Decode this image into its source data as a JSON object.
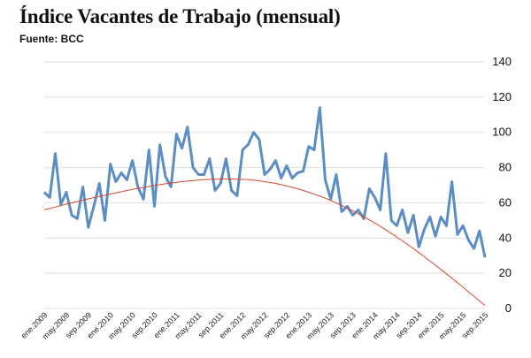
{
  "header": {
    "title": "Índice Vacantes de Trabajo (mensual)",
    "subtitle": "Fuente: BCC"
  },
  "colors": {
    "series": "#5b8ec4",
    "trend": "#d9472f",
    "grid": "#dedede"
  },
  "chart_data": {
    "type": "line",
    "title": "Índice Vacantes de Trabajo (mensual)",
    "subtitle": "Fuente: BCC",
    "ylim": [
      0,
      140
    ],
    "yticks": [
      0,
      20,
      40,
      60,
      80,
      100,
      120,
      140
    ],
    "grid": true,
    "xtick_labels": [
      "ene.2009",
      "may.2009",
      "sep.2009",
      "ene.2010",
      "may.2010",
      "sep.2010",
      "ene.2011",
      "may.2011",
      "sep.2011",
      "ene.2012",
      "may.2012",
      "sep.2012",
      "ene.2013",
      "may.2013",
      "sep.2013",
      "ene.2014",
      "may.2014",
      "sep.2014",
      "ene.2015",
      "may.2015",
      "sep.2015"
    ],
    "series": [
      {
        "values": [
          66,
          63,
          88,
          59,
          66,
          53,
          51,
          69,
          46,
          58,
          71,
          50,
          82,
          72,
          77,
          73,
          84,
          69,
          62,
          90,
          58,
          93,
          75,
          69,
          99,
          91,
          103,
          80,
          76,
          76,
          85,
          67,
          71,
          85,
          67,
          64,
          90,
          93,
          100,
          96,
          76,
          79,
          84,
          74,
          81,
          74,
          77,
          78,
          92,
          90,
          114,
          73,
          62,
          76,
          55,
          58,
          53,
          56,
          51,
          68,
          63,
          56,
          88,
          50,
          47,
          56,
          43,
          53,
          35,
          45,
          52,
          41,
          52,
          47,
          72,
          42,
          47,
          39,
          34,
          44,
          29
        ]
      },
      {
        "name": "",
        "type": "trend",
        "values": [
          56,
          56.8,
          57.6,
          58.4,
          59.2,
          60,
          60.7,
          61.5,
          62.2,
          62.9,
          63.6,
          64.3,
          65,
          65.7,
          66.3,
          67,
          67.6,
          68.2,
          68.7,
          69.3,
          69.8,
          70.3,
          70.8,
          71.2,
          71.6,
          72,
          72.3,
          72.6,
          72.9,
          73.1,
          73.3,
          73.4,
          73.5,
          73.5,
          73.5,
          73.4,
          73.3,
          73.1,
          72.8,
          72.5,
          72,
          71.5,
          71,
          70.3,
          69.6,
          68.8,
          68,
          67,
          66,
          64.9,
          63.8,
          62.6,
          61.3,
          59.9,
          58.5,
          57,
          55.4,
          53.8,
          52.1,
          50.3,
          48.5,
          46.6,
          44.6,
          42.6,
          40.5,
          38.4,
          36.2,
          34,
          31.7,
          29.4,
          27,
          24.6,
          22.2,
          19.7,
          17.2,
          14.7,
          12.1,
          9.5,
          6.9,
          4.3,
          1.7
        ]
      }
    ]
  }
}
